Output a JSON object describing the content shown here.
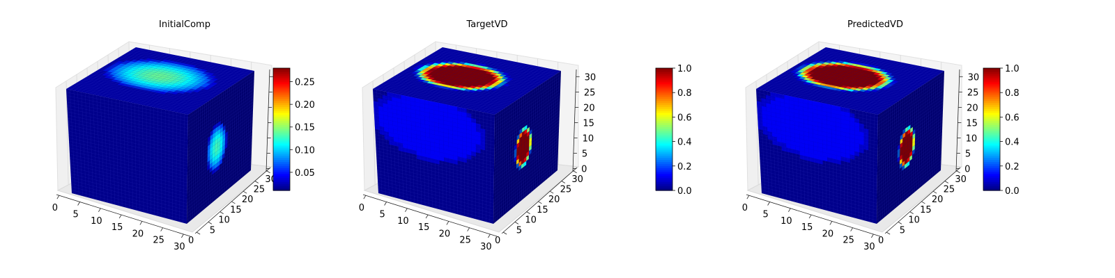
{
  "chart_data": [
    {
      "type": "3d-voxel",
      "title": "InitialComp",
      "xticks": [
        "0",
        "5",
        "10",
        "15",
        "20",
        "25",
        "30"
      ],
      "yticks": [
        "0",
        "5",
        "10",
        "15",
        "20",
        "25",
        "30"
      ],
      "zticks": [
        "",
        "",
        "",
        "",
        "",
        "",
        ""
      ],
      "colorbar": {
        "min": 0.01,
        "max": 0.28,
        "ticks": [
          "0.05",
          "0.10",
          "0.15",
          "0.20",
          "0.25"
        ],
        "tick_values": [
          0.05,
          0.1,
          0.15,
          0.2,
          0.25
        ]
      },
      "colormap": "jet",
      "top_blob": {
        "value": 0.14,
        "u": 0.55,
        "v": 0.22,
        "ru": 0.38,
        "rv": 0.23
      },
      "side_blob": {
        "value": 0.13,
        "u": 0.45,
        "v": 0.5,
        "ru": 0.14,
        "rv": 0.2
      }
    },
    {
      "type": "3d-voxel",
      "title": "TargetVD",
      "xticks": [
        "0",
        "5",
        "10",
        "15",
        "20",
        "25",
        "30"
      ],
      "yticks": [
        "0",
        "5",
        "10",
        "15",
        "20",
        "25",
        "30"
      ],
      "zticks": [
        "0",
        "5",
        "10",
        "15",
        "20",
        "25",
        "30"
      ],
      "colorbar": {
        "min": 0.0,
        "max": 1.0,
        "ticks": [
          "0.0",
          "0.2",
          "0.4",
          "0.6",
          "0.8",
          "1.0"
        ],
        "tick_values": [
          0.0,
          0.2,
          0.4,
          0.6,
          0.8,
          1.0
        ]
      },
      "colormap": "jet",
      "top_blob": {
        "value": 1.0,
        "u": 0.52,
        "v": 0.2,
        "ru": 0.33,
        "rv": 0.2
      },
      "side_blob": {
        "value": 1.0,
        "u": 0.45,
        "v": 0.5,
        "ru": 0.12,
        "rv": 0.18
      }
    },
    {
      "type": "3d-voxel",
      "title": "PredictedVD",
      "xticks": [
        "0",
        "5",
        "10",
        "15",
        "20",
        "25",
        "30"
      ],
      "yticks": [
        "0",
        "5",
        "10",
        "15",
        "20",
        "25",
        "30"
      ],
      "zticks": [
        "0",
        "5",
        "10",
        "15",
        "20",
        "25",
        "30"
      ],
      "colorbar": {
        "min": 0.0,
        "max": 1.0,
        "ticks": [
          "0.0",
          "0.2",
          "0.4",
          "0.6",
          "0.8",
          "1.0"
        ],
        "tick_values": [
          0.0,
          0.2,
          0.4,
          0.6,
          0.8,
          1.0
        ]
      },
      "colormap": "jet",
      "top_blob": {
        "value": 1.0,
        "u": 0.52,
        "v": 0.2,
        "ru": 0.35,
        "rv": 0.21
      },
      "side_blob": {
        "value": 1.0,
        "u": 0.45,
        "v": 0.5,
        "ru": 0.12,
        "rv": 0.18
      }
    }
  ]
}
